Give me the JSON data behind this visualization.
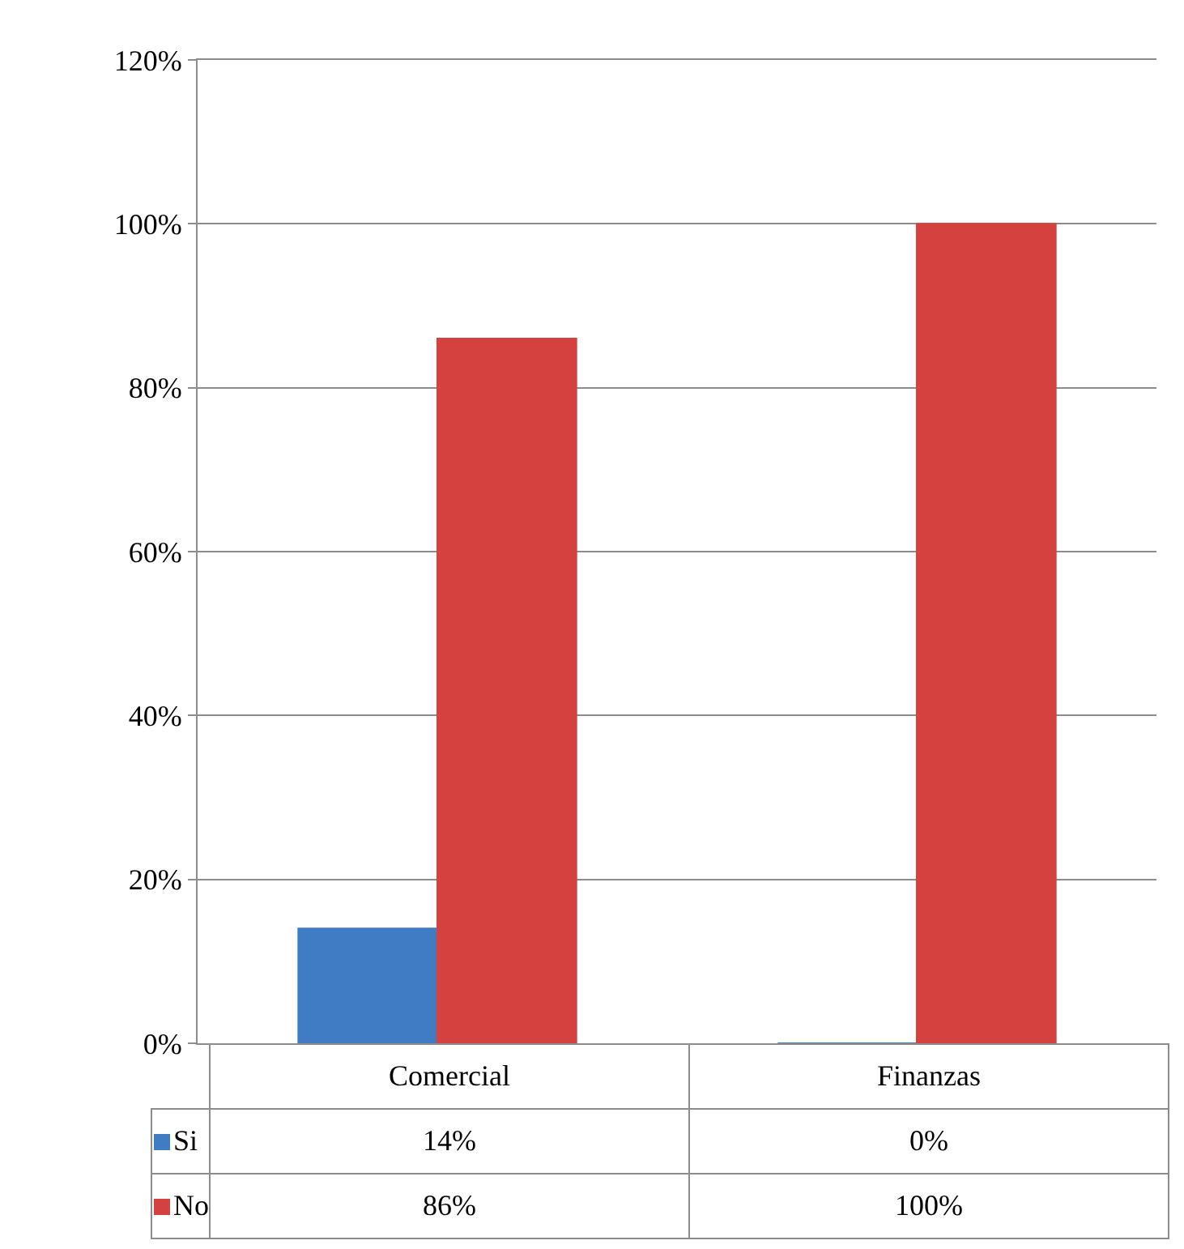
{
  "chart_data": {
    "type": "bar",
    "categories": [
      "Comercial",
      "Finanzas"
    ],
    "series": [
      {
        "name": "Si",
        "color": "#3f7cc4",
        "values": [
          14,
          0
        ],
        "value_labels": [
          "14%",
          "0%"
        ]
      },
      {
        "name": "No",
        "color": "#d5413e",
        "values": [
          86,
          100
        ],
        "value_labels": [
          "86%",
          "100%"
        ]
      }
    ],
    "ylim": [
      0,
      120
    ],
    "yticks": [
      {
        "value": 0,
        "label": "0%"
      },
      {
        "value": 20,
        "label": "20%"
      },
      {
        "value": 40,
        "label": "40%"
      },
      {
        "value": 60,
        "label": "60%"
      },
      {
        "value": 80,
        "label": "80%"
      },
      {
        "value": 100,
        "label": "100%"
      },
      {
        "value": 120,
        "label": "120%"
      }
    ],
    "grid": "y",
    "legend": "bottom"
  }
}
